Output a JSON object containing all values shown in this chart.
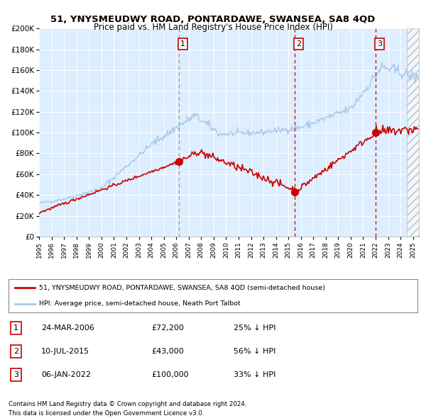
{
  "title": "51, YNYSMEUDWY ROAD, PONTARDAWE, SWANSEA, SA8 4QD",
  "subtitle": "Price paid vs. HM Land Registry's House Price Index (HPI)",
  "ylim": [
    0,
    200000
  ],
  "yticks": [
    0,
    20000,
    40000,
    60000,
    80000,
    100000,
    120000,
    140000,
    160000,
    180000,
    200000
  ],
  "ytick_labels": [
    "£0",
    "£20K",
    "£40K",
    "£60K",
    "£80K",
    "£100K",
    "£120K",
    "£140K",
    "£160K",
    "£180K",
    "£200K"
  ],
  "hpi_color": "#a8c8e8",
  "price_color": "#cc0000",
  "bg_color": "#ddeeff",
  "marker_color": "#cc0000",
  "transaction1_date": 2006.23,
  "transaction1_price": 72200,
  "transaction2_date": 2015.53,
  "transaction2_price": 43000,
  "transaction3_date": 2022.02,
  "transaction3_price": 100000,
  "legend_label1": "51, YNYSMEUDWY ROAD, PONTARDAWE, SWANSEA, SA8 4QD (semi-detached house)",
  "legend_label2": "HPI: Average price, semi-detached house, Neath Port Talbot",
  "table_rows": [
    [
      "1",
      "24-MAR-2006",
      "£72,200",
      "25% ↓ HPI"
    ],
    [
      "2",
      "10-JUL-2015",
      "£43,000",
      "56% ↓ HPI"
    ],
    [
      "3",
      "06-JAN-2022",
      "£100,000",
      "33% ↓ HPI"
    ]
  ],
  "footer1": "Contains HM Land Registry data © Crown copyright and database right 2024.",
  "footer2": "This data is licensed under the Open Government Licence v3.0.",
  "xlim_start": 1995.0,
  "xlim_end": 2025.5,
  "hatch_start": 2024.5
}
